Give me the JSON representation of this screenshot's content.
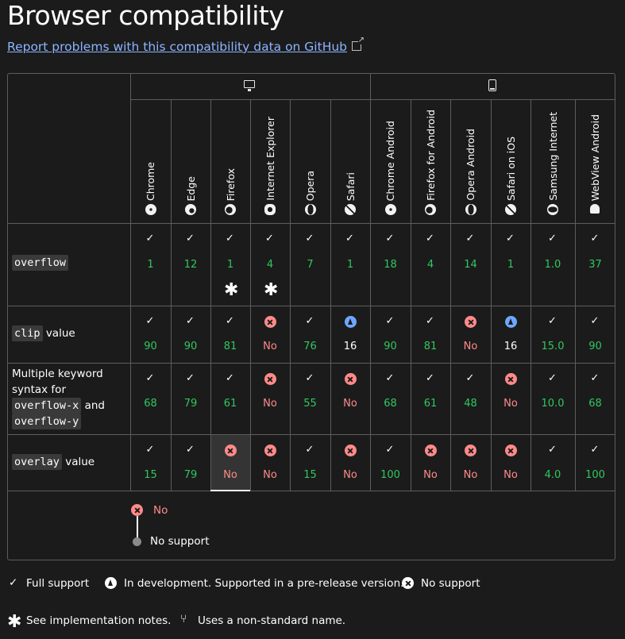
{
  "page": {
    "title": "Browser compatibility",
    "report_link": "Report problems with this compatibility data on GitHub"
  },
  "platforms": [
    {
      "name": "desktop",
      "icon": "desktop-icon"
    },
    {
      "name": "mobile",
      "icon": "mobile-icon"
    }
  ],
  "browsers": [
    {
      "name": "Chrome",
      "icon": "chrome-icon"
    },
    {
      "name": "Edge",
      "icon": "edge-icon"
    },
    {
      "name": "Firefox",
      "icon": "firefox-icon"
    },
    {
      "name": "Internet Explorer",
      "icon": "ie-icon"
    },
    {
      "name": "Opera",
      "icon": "opera-icon"
    },
    {
      "name": "Safari",
      "icon": "safari-icon"
    },
    {
      "name": "Chrome Android",
      "icon": "chrome-icon"
    },
    {
      "name": "Firefox for Android",
      "icon": "firefox-icon"
    },
    {
      "name": "Opera Android",
      "icon": "opera-icon"
    },
    {
      "name": "Safari on iOS",
      "icon": "safari-icon"
    },
    {
      "name": "Samsung Internet",
      "icon": "samsung-icon"
    },
    {
      "name": "WebView Android",
      "icon": "android-icon"
    }
  ],
  "features": [
    {
      "name_code": "overflow",
      "name_text": "",
      "support": [
        {
          "s": "yes",
          "v": "1"
        },
        {
          "s": "yes",
          "v": "12"
        },
        {
          "s": "yes",
          "v": "1",
          "note": "*"
        },
        {
          "s": "yes",
          "v": "4",
          "note": "*"
        },
        {
          "s": "yes",
          "v": "7"
        },
        {
          "s": "yes",
          "v": "1"
        },
        {
          "s": "yes",
          "v": "18"
        },
        {
          "s": "yes",
          "v": "4"
        },
        {
          "s": "yes",
          "v": "14"
        },
        {
          "s": "yes",
          "v": "1"
        },
        {
          "s": "yes",
          "v": "1.0"
        },
        {
          "s": "yes",
          "v": "37"
        }
      ]
    },
    {
      "name_code": "clip",
      "name_text": "value",
      "support": [
        {
          "s": "yes",
          "v": "90"
        },
        {
          "s": "yes",
          "v": "90"
        },
        {
          "s": "yes",
          "v": "81"
        },
        {
          "s": "no",
          "v": "No"
        },
        {
          "s": "yes",
          "v": "76"
        },
        {
          "s": "dev",
          "v": "16"
        },
        {
          "s": "yes",
          "v": "90"
        },
        {
          "s": "yes",
          "v": "81"
        },
        {
          "s": "no",
          "v": "No"
        },
        {
          "s": "dev",
          "v": "16"
        },
        {
          "s": "yes",
          "v": "15.0"
        },
        {
          "s": "yes",
          "v": "90"
        }
      ]
    },
    {
      "name_lines": [
        "Multiple keyword",
        "syntax for"
      ],
      "name_code_x": "overflow-x",
      "name_and": "and",
      "name_code_y": "overflow-y",
      "support": [
        {
          "s": "yes",
          "v": "68"
        },
        {
          "s": "yes",
          "v": "79"
        },
        {
          "s": "yes",
          "v": "61"
        },
        {
          "s": "no",
          "v": "No"
        },
        {
          "s": "yes",
          "v": "55"
        },
        {
          "s": "no",
          "v": "No"
        },
        {
          "s": "yes",
          "v": "68"
        },
        {
          "s": "yes",
          "v": "61"
        },
        {
          "s": "yes",
          "v": "48"
        },
        {
          "s": "no",
          "v": "No"
        },
        {
          "s": "yes",
          "v": "10.0"
        },
        {
          "s": "yes",
          "v": "68"
        }
      ]
    },
    {
      "name_code": "overlay",
      "name_text": "value",
      "support": [
        {
          "s": "yes",
          "v": "15"
        },
        {
          "s": "yes",
          "v": "79"
        },
        {
          "s": "no",
          "v": "No"
        },
        {
          "s": "no",
          "v": "No"
        },
        {
          "s": "yes",
          "v": "15"
        },
        {
          "s": "no",
          "v": "No"
        },
        {
          "s": "yes",
          "v": "100"
        },
        {
          "s": "no",
          "v": "No"
        },
        {
          "s": "no",
          "v": "No"
        },
        {
          "s": "no",
          "v": "No"
        },
        {
          "s": "yes",
          "v": "4.0"
        },
        {
          "s": "yes",
          "v": "100"
        }
      ]
    }
  ],
  "details": {
    "status": "No",
    "description": "No support"
  },
  "legend": {
    "full": "Full support",
    "dev": "In development. Supported in a pre-release version.",
    "none": "No support",
    "notes": "See implementation notes.",
    "nonstandard": "Uses a non-standard name."
  },
  "colors": {
    "yes": "#30c85f",
    "no": "#ff8a8a",
    "dev": "#6ea7ff",
    "link": "#8cb4ff"
  }
}
